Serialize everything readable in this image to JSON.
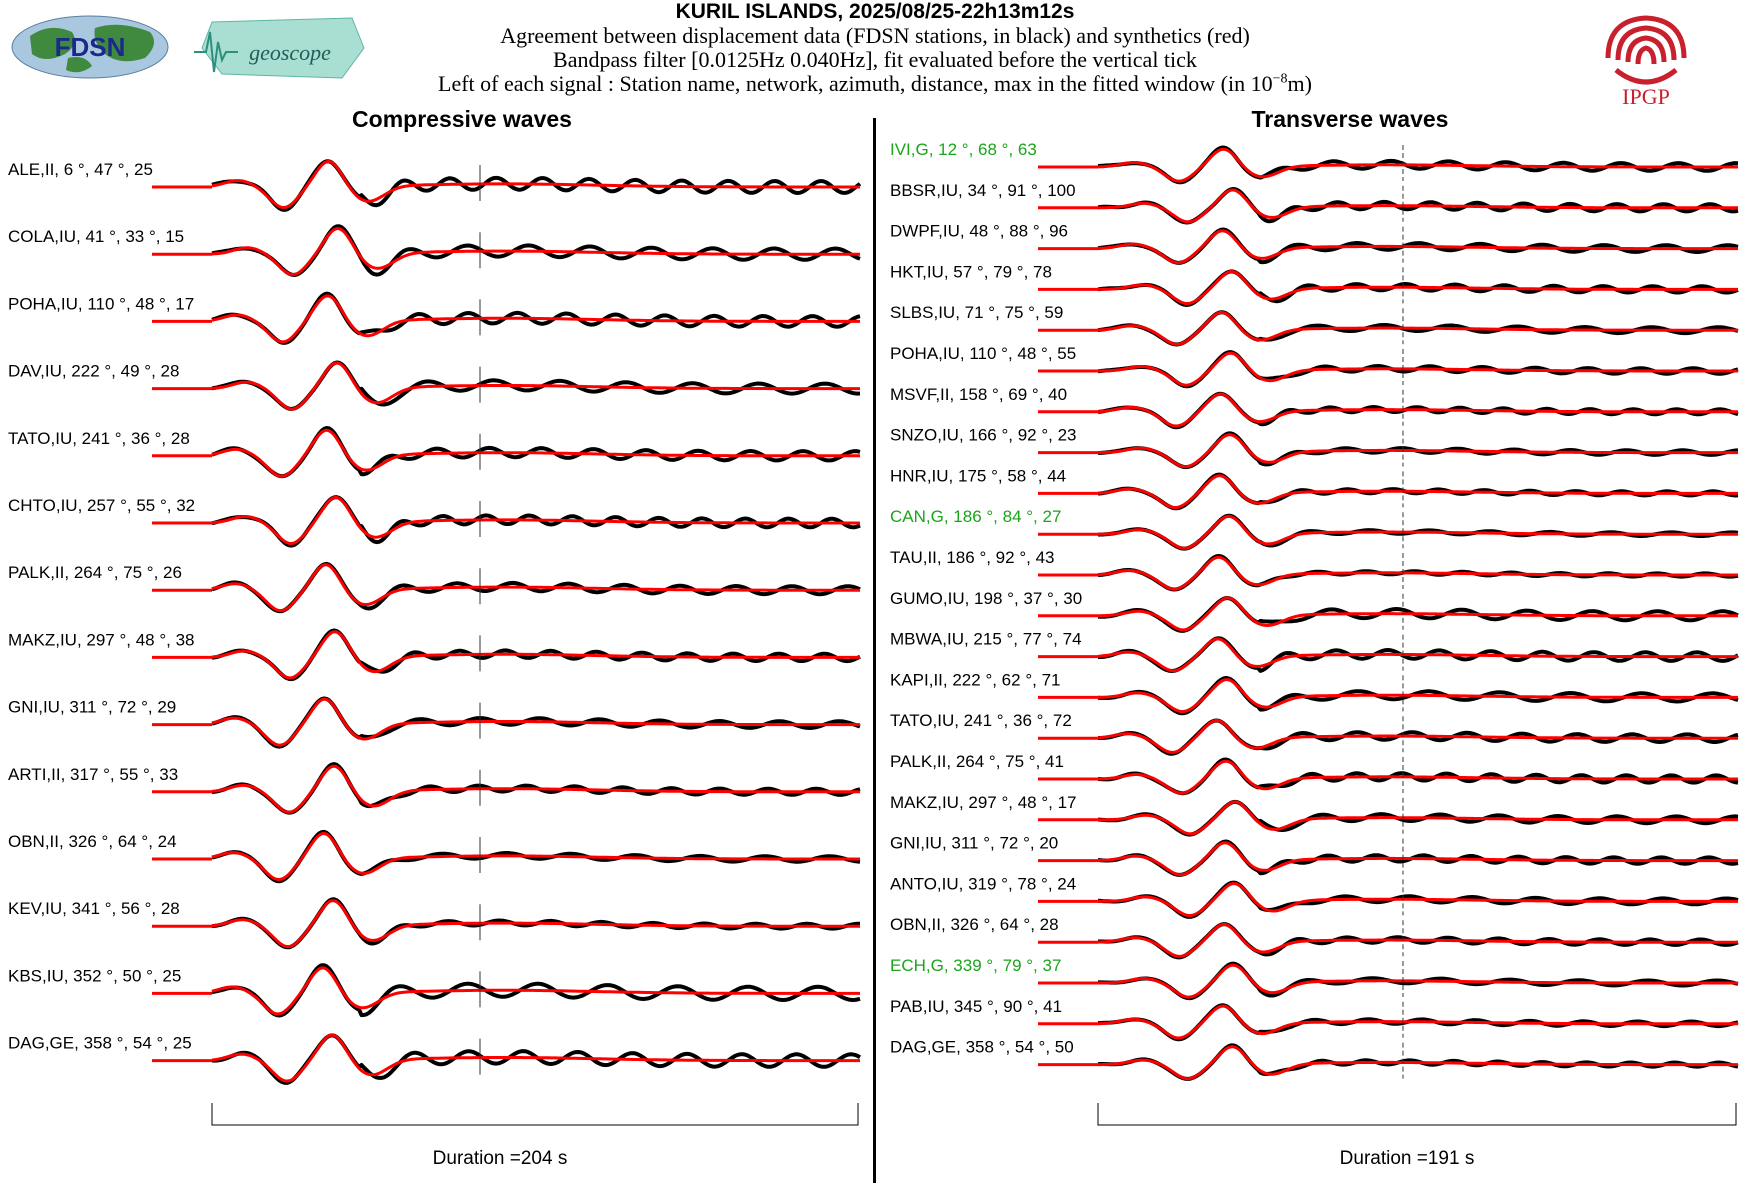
{
  "header": {
    "title": "KURIL ISLANDS, 2025/08/25-22h13m12s",
    "line1": "Agreement between displacement data (FDSN stations, in black) and synthetics (red)",
    "line2": "Bandpass filter [0.0125Hz 0.040Hz], fit evaluated before the vertical tick",
    "line3_pre": "Left of each signal : Station name, network, azimuth, distance, max in the fitted window (in 10",
    "line3_exp": "−8",
    "line3_post": "m)"
  },
  "logos": {
    "fdsn": "FDSN",
    "geoscope": "geoscope",
    "ipgp": "IPGP"
  },
  "colors": {
    "data": "#000000",
    "synthetic": "#ff0000",
    "highlight": "#1aa51a",
    "ipgp": "#c8202c"
  },
  "chart_data": [
    {
      "type": "line",
      "title": "Compressive waves",
      "duration_label": "Duration =204 s",
      "series_meaning": {
        "data": "black",
        "synthetic": "red"
      },
      "stations": [
        {
          "label": "ALE,II, 6 °, 47 °, 25",
          "highlight": false
        },
        {
          "label": "COLA,IU, 41 °, 33 °, 15",
          "highlight": false
        },
        {
          "label": "POHA,IU, 110 °, 48 °, 17",
          "highlight": false
        },
        {
          "label": "DAV,IU, 222 °, 49 °, 28",
          "highlight": false
        },
        {
          "label": "TATO,IU, 241 °, 36 °, 28",
          "highlight": false
        },
        {
          "label": "CHTO,IU, 257 °, 55 °, 32",
          "highlight": false
        },
        {
          "label": "PALK,II, 264 °, 75 °, 26",
          "highlight": false
        },
        {
          "label": "MAKZ,IU, 297 °, 48 °, 38",
          "highlight": false
        },
        {
          "label": "GNI,IU, 311 °, 72 °, 29",
          "highlight": false
        },
        {
          "label": "ARTI,II, 317 °, 55 °, 33",
          "highlight": false
        },
        {
          "label": "OBN,II, 326 °, 64 °, 24",
          "highlight": false
        },
        {
          "label": "KEV,IU, 341 °, 56 °, 28",
          "highlight": false
        },
        {
          "label": "KBS,IU, 352 °, 50 °, 25",
          "highlight": false
        },
        {
          "label": "DAG,GE, 358 °, 54 °, 25",
          "highlight": false
        }
      ]
    },
    {
      "type": "line",
      "title": "Transverse waves",
      "duration_label": "Duration =191 s",
      "series_meaning": {
        "data": "black",
        "synthetic": "red"
      },
      "stations": [
        {
          "label": "IVI,G, 12 °, 68 °, 63",
          "highlight": true
        },
        {
          "label": "BBSR,IU, 34 °, 91 °, 100",
          "highlight": false
        },
        {
          "label": "DWPF,IU, 48 °, 88 °, 96",
          "highlight": false
        },
        {
          "label": "HKT,IU, 57 °, 79 °, 78",
          "highlight": false
        },
        {
          "label": "SLBS,IU, 71 °, 75 °, 59",
          "highlight": false
        },
        {
          "label": "POHA,IU, 110 °, 48 °, 55",
          "highlight": false
        },
        {
          "label": "MSVF,II, 158 °, 69 °, 40",
          "highlight": false
        },
        {
          "label": "SNZO,IU, 166 °, 92 °, 23",
          "highlight": false
        },
        {
          "label": "HNR,IU, 175 °, 58 °, 44",
          "highlight": false
        },
        {
          "label": "CAN,G, 186 °, 84 °, 27",
          "highlight": true
        },
        {
          "label": "TAU,II, 186 °, 92 °, 43",
          "highlight": false
        },
        {
          "label": "GUMO,IU, 198 °, 37 °, 30",
          "highlight": false
        },
        {
          "label": "MBWA,IU, 215 °, 77 °, 74",
          "highlight": false
        },
        {
          "label": "KAPI,II, 222 °, 62 °, 71",
          "highlight": false
        },
        {
          "label": "TATO,IU, 241 °, 36 °, 72",
          "highlight": false
        },
        {
          "label": "PALK,II, 264 °, 75 °, 41",
          "highlight": false
        },
        {
          "label": "MAKZ,IU, 297 °, 48 °, 17",
          "highlight": false
        },
        {
          "label": "GNI,IU, 311 °, 72 °, 20",
          "highlight": false
        },
        {
          "label": "ANTO,IU, 319 °, 78 °, 24",
          "highlight": false
        },
        {
          "label": "OBN,II, 326 °, 64 °, 28",
          "highlight": false
        },
        {
          "label": "ECH,G, 339 °, 79 °, 37",
          "highlight": true
        },
        {
          "label": "PAB,IU, 345 °, 90 °, 41",
          "highlight": false
        },
        {
          "label": "DAG,GE, 358 °, 54 °, 50",
          "highlight": false
        }
      ]
    }
  ]
}
